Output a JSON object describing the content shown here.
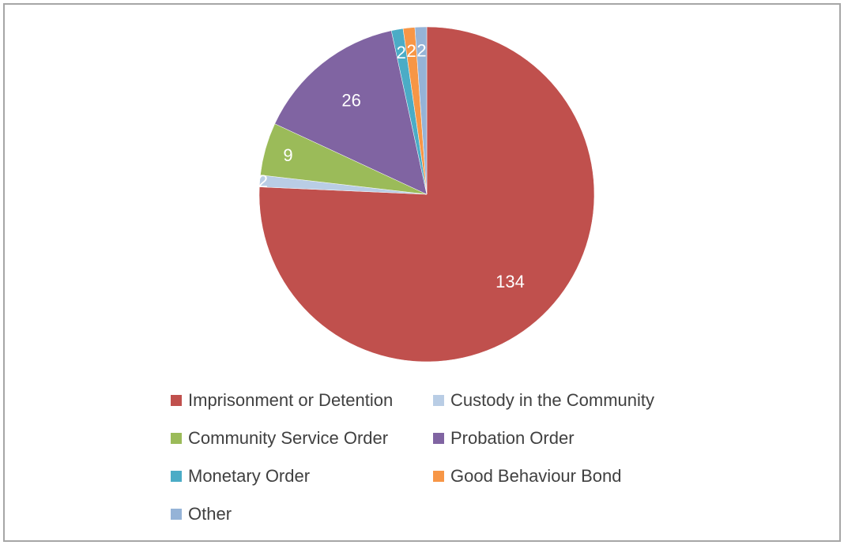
{
  "chart_data": {
    "type": "pie",
    "start_angle_deg": 0,
    "direction": "clockwise",
    "slices": [
      {
        "label": "Imprisonment or Detention",
        "value": 134,
        "color": "#c0504d",
        "label_color": "#ffffff"
      },
      {
        "label": "Custody in the Community",
        "value": 2,
        "color": "#b9cde5",
        "label_color": "#ffffff"
      },
      {
        "label": "Community Service Order",
        "value": 9,
        "color": "#9bbb59",
        "label_color": "#ffffff"
      },
      {
        "label": "Probation Order",
        "value": 26,
        "color": "#8064a2",
        "label_color": "#ffffff"
      },
      {
        "label": "Monetary Order",
        "value": 2,
        "color": "#4bacc6",
        "label_color": "#ffffff"
      },
      {
        "label": "Good Behaviour Bond",
        "value": 2,
        "color": "#f79646",
        "label_color": "#ffffff"
      },
      {
        "label": "Other",
        "value": 2,
        "color": "#95b3d7",
        "label_color": "#ffffff"
      }
    ],
    "legend_position": "bottom"
  }
}
